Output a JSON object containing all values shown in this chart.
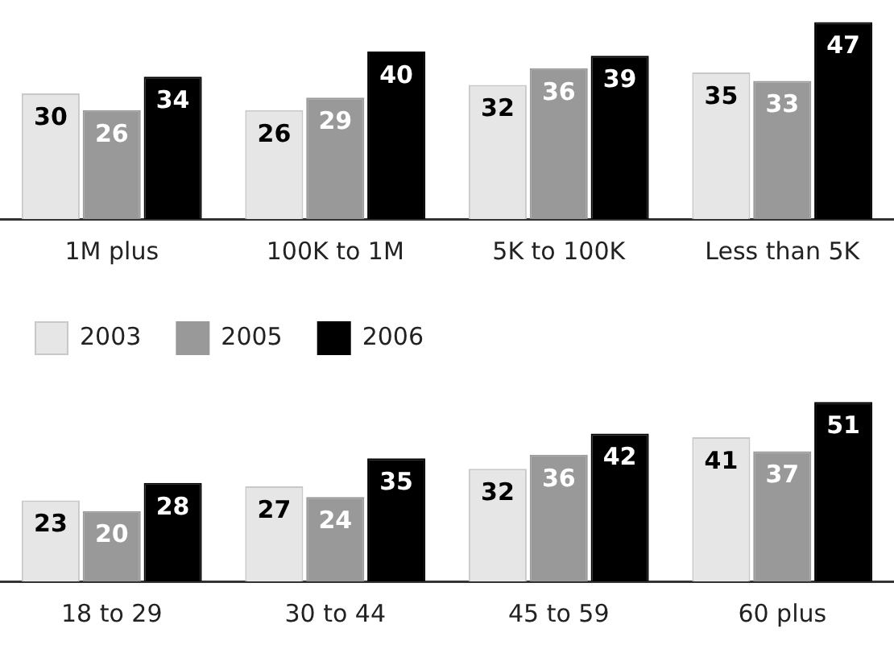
{
  "chart_data": [
    {
      "type": "bar",
      "categories": [
        "1M plus",
        "100K to 1M",
        "5K to 100K",
        "Less than 5K"
      ],
      "data_labels": true,
      "legend": false,
      "grid": false,
      "series": [
        {
          "color": "#e6e6e6",
          "values": [
            30,
            26,
            32,
            35
          ]
        },
        {
          "color": "#999999",
          "values": [
            26,
            29,
            36,
            33
          ]
        },
        {
          "color": "#000000",
          "values": [
            34,
            40,
            39,
            47
          ]
        }
      ]
    },
    {
      "type": "bar",
      "categories": [
        "18 to 29",
        "30 to 44",
        "45 to 59",
        "60 plus"
      ],
      "data_labels": true,
      "legend": "top left",
      "grid": false,
      "series": [
        {
          "name": "2003",
          "color": "#e6e6e6",
          "values": [
            23,
            27,
            32,
            41
          ]
        },
        {
          "name": "2005",
          "color": "#999999",
          "values": [
            20,
            24,
            36,
            37
          ]
        },
        {
          "name": "2006",
          "color": "#000000",
          "values": [
            28,
            35,
            42,
            51
          ]
        }
      ]
    }
  ]
}
